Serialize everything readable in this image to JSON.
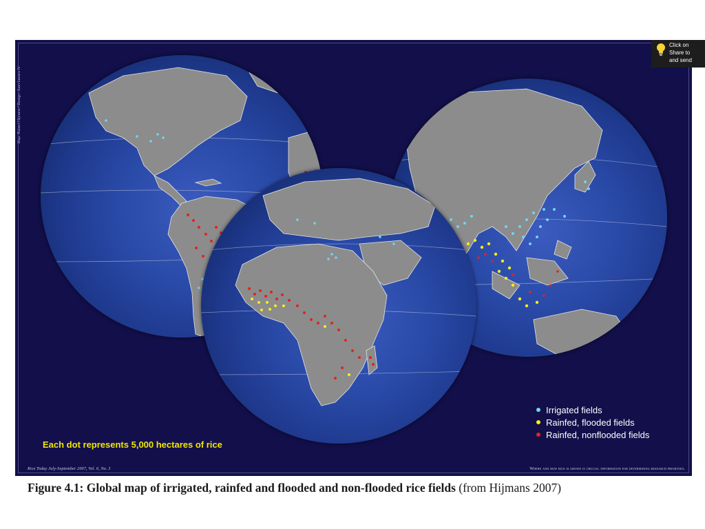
{
  "map": {
    "side_credit": "Map: Robert Hijmans / Design: Juan Lazaro IV",
    "dot_caption": "Each dot represents 5,000 hectares of rice",
    "legend": [
      {
        "label": "Irrigated fields",
        "color": "#6fd6f0"
      },
      {
        "label": "Rainfed, flooded fields",
        "color": "#f5ee1a"
      },
      {
        "label": "Rainfed, nonflooded fields",
        "color": "#e0241c"
      }
    ],
    "footer_left": "Rice Today July-September 2007, Vol. 6, No. 3",
    "footer_right": "Where and how rice is grown is crucial information for determining research priorities.",
    "colors": {
      "panel": "#120f4a",
      "ocean": "#2a4aa8",
      "land": "#8c8c8c",
      "coast": "#e6e6e6"
    },
    "globes": [
      "americas",
      "africa-europe",
      "asia-oceania"
    ]
  },
  "notification": {
    "icon": "lightbulb-icon",
    "lines": [
      "Click on",
      "Share to",
      "and send"
    ]
  },
  "figure": {
    "label": "Figure 4.1:",
    "title": "Global map of irrigated, rainfed and flooded and non-flooded rice fields",
    "source": "(from Hijmans 2007)"
  }
}
